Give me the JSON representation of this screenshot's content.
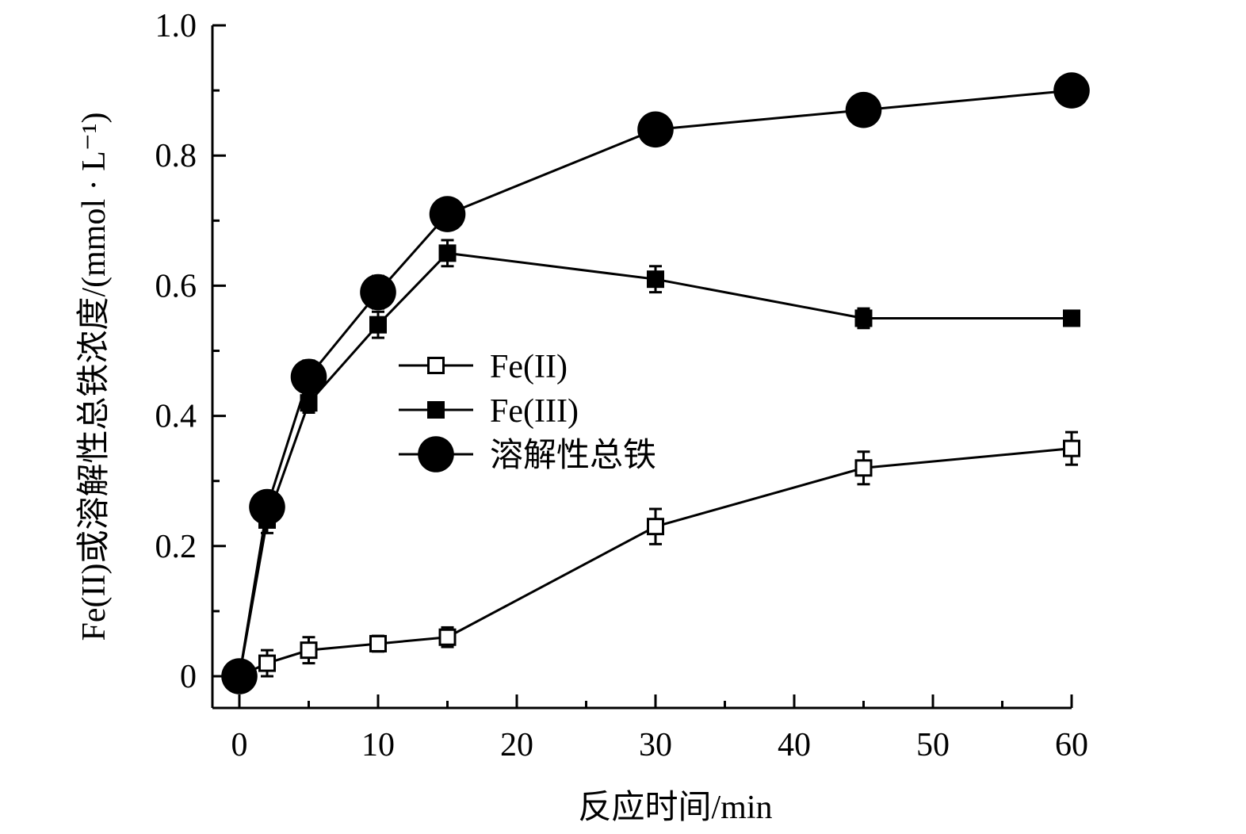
{
  "chart_data": {
    "type": "line",
    "xlabel": "反应时间/min",
    "ylabel": "Fe(II)或溶解性总铁浓度/(mmol · L⁻¹)",
    "xlim": [
      -2,
      62
    ],
    "ylim": [
      -0.05,
      1.0
    ],
    "xticks": [
      0,
      10,
      20,
      30,
      40,
      50,
      60
    ],
    "yticks": [
      0,
      0.2,
      0.4,
      0.6,
      0.8,
      1.0
    ],
    "ytick_labels": [
      "0",
      "0.2",
      "0.4",
      "0.6",
      "0.8",
      "1.0"
    ],
    "grid": false,
    "legend_position": "center",
    "x": [
      0,
      2,
      5,
      10,
      15,
      30,
      45,
      60
    ],
    "series": [
      {
        "name": "Fe(II)",
        "marker": "open-square",
        "values": [
          0,
          0.02,
          0.04,
          0.05,
          0.06,
          0.23,
          0.32,
          0.35
        ],
        "errors": [
          0.01,
          0.02,
          0.02,
          0.012,
          0.015,
          0.027,
          0.025,
          0.025
        ]
      },
      {
        "name": "Fe(III)",
        "marker": "filled-square",
        "values": [
          0,
          0.24,
          0.42,
          0.54,
          0.65,
          0.61,
          0.55,
          0.55
        ],
        "errors": [
          0.01,
          0.02,
          0.015,
          0.02,
          0.02,
          0.02,
          0.015,
          0.01
        ]
      },
      {
        "name": "溶解性总铁",
        "marker": "filled-circle",
        "values": [
          0,
          0.26,
          0.46,
          0.59,
          0.71,
          0.84,
          0.87,
          0.9
        ],
        "errors": [
          0.01,
          0.02,
          0.025,
          0.025,
          0.02,
          0.02,
          0.02,
          0.02
        ]
      }
    ],
    "color": "#000000"
  }
}
